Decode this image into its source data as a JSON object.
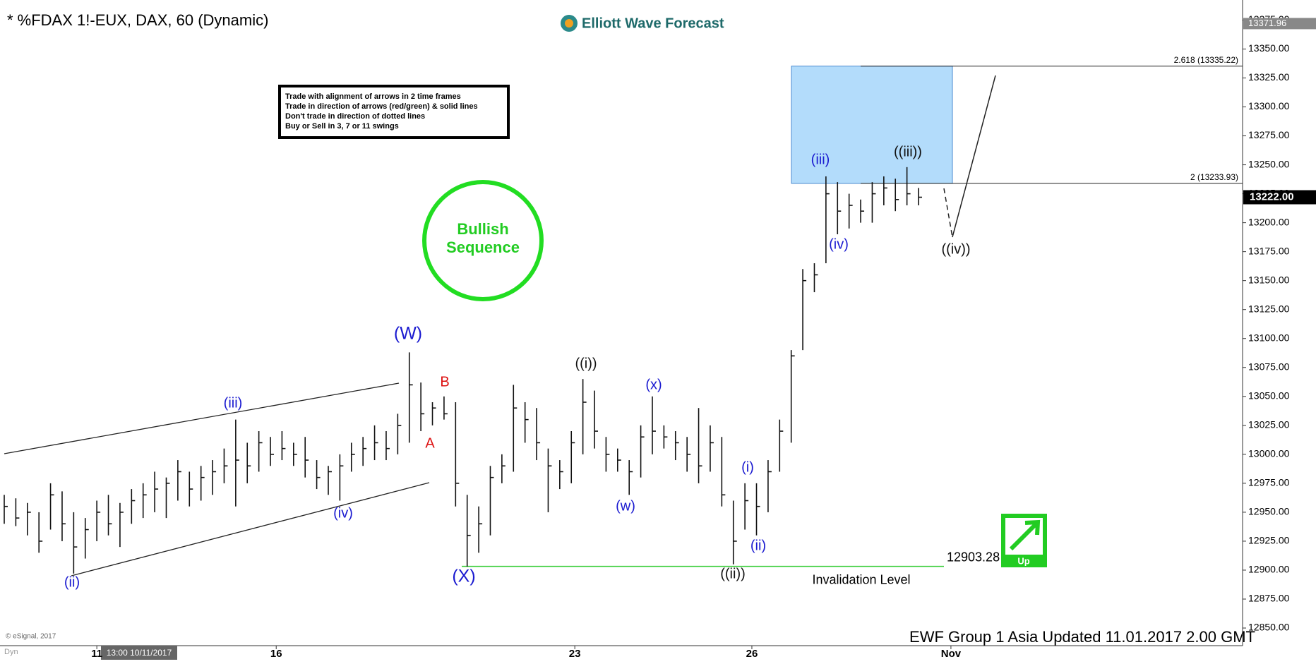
{
  "chart_data": {
    "type": "ohlc",
    "title": "* %FDAX 1!-EUX, DAX, 60 (Dynamic)",
    "logo": "Elliott Wave Forecast",
    "legend_box": [
      "Trade with alignment of arrows in 2 time frames",
      "Trade in direction of arrows (red/green) & solid lines",
      "Don't trade in direction of dotted lines",
      "Buy or Sell in 3, 7 or 11 swings"
    ],
    "badge": [
      "Bullish",
      "Sequence"
    ],
    "signal": "Up",
    "footer": "EWF Group 1 Asia Updated 11.01.2017 2.00 GMT",
    "copyright": "© eSignal, 2017",
    "mode": "Dyn",
    "cursor_label": "13:00 10/11/2017",
    "color": "#111111",
    "high": [
      12965,
      12962,
      12958,
      12950,
      12975,
      12968,
      12950,
      12945,
      12960,
      12965,
      12958,
      12970,
      12975,
      12985,
      12980,
      12995,
      12985,
      12990,
      12995,
      13005,
      13030,
      13010,
      13020,
      13015,
      13020,
      13010,
      13015,
      12995,
      12990,
      13000,
      13010,
      13015,
      13025,
      13020,
      13035,
      13088,
      13062,
      13045,
      13050,
      13045,
      12965,
      12955,
      12990,
      13000,
      13060,
      13045,
      13040,
      13005,
      12995,
      13020,
      13065,
      13055,
      13015,
      13005,
      12995,
      13025,
      13050,
      13025,
      13020,
      13015,
      13040,
      13025,
      13015,
      12960,
      12975,
      12975,
      12995,
      13030,
      13090,
      13160,
      13165,
      13240,
      13235,
      13225,
      13220,
      13235,
      13240,
      13238,
      13248,
      13230
    ],
    "low": [
      12940,
      12938,
      12930,
      12915,
      12935,
      12925,
      12897,
      12910,
      12925,
      12930,
      12920,
      12940,
      12945,
      12950,
      12945,
      12960,
      12955,
      12960,
      12965,
      12975,
      12955,
      12975,
      12985,
      12990,
      12995,
      12990,
      12980,
      12970,
      12965,
      12960,
      12985,
      12990,
      12995,
      12995,
      13000,
      13010,
      13020,
      13025,
      13030,
      12955,
      12903,
      12915,
      12930,
      12975,
      12985,
      13010,
      12995,
      12950,
      12970,
      12975,
      13000,
      13005,
      12985,
      12985,
      12965,
      12980,
      13000,
      13005,
      12995,
      12985,
      12975,
      12985,
      12955,
      12905,
      12935,
      12930,
      12950,
      12985,
      13010,
      13090,
      13140,
      13165,
      13190,
      13195,
      13200,
      13200,
      13215,
      13210,
      13215,
      13215
    ],
    "close": [
      12955,
      12945,
      12950,
      12925,
      12965,
      12940,
      12920,
      12935,
      12950,
      12940,
      12950,
      12960,
      12965,
      12970,
      12975,
      12985,
      12970,
      12980,
      12985,
      12990,
      12995,
      12990,
      13010,
      13000,
      13005,
      13000,
      12995,
      12980,
      12985,
      12990,
      13000,
      13005,
      13010,
      13005,
      13025,
      13060,
      13035,
      13040,
      13035,
      12975,
      12930,
      12940,
      12980,
      12990,
      13040,
      13030,
      13010,
      12990,
      12985,
      13010,
      13045,
      13020,
      13000,
      12995,
      12985,
      13015,
      13020,
      13015,
      13010,
      13000,
      12990,
      13010,
      12965,
      12925,
      12960,
      12955,
      12985,
      13020,
      13085,
      13150,
      13155,
      13225,
      13210,
      13215,
      13210,
      13225,
      13230,
      13220,
      13225,
      13222
    ],
    "xlim": [
      0,
      107
    ],
    "xticks": [
      {
        "value": 8,
        "label": "11"
      },
      {
        "value": 23.5,
        "label": "16"
      },
      {
        "value": 49.3,
        "label": "23"
      },
      {
        "value": 64.6,
        "label": "26"
      },
      {
        "value": 81.8,
        "label": "Nov"
      }
    ],
    "ylim": [
      12836,
      13385
    ],
    "yticks": [
      {
        "value": 12850,
        "label": "12850.00"
      },
      {
        "value": 12875,
        "label": "12875.00"
      },
      {
        "value": 12900,
        "label": "12900.00"
      },
      {
        "value": 12925,
        "label": "12925.00"
      },
      {
        "value": 12950,
        "label": "12950.00"
      },
      {
        "value": 12975,
        "label": "12975.00"
      },
      {
        "value": 13000,
        "label": "13000.00"
      },
      {
        "value": 13025,
        "label": "13025.00"
      },
      {
        "value": 13050,
        "label": "13050.00"
      },
      {
        "value": 13075,
        "label": "13075.00"
      },
      {
        "value": 13100,
        "label": "13100.00"
      },
      {
        "value": 13125,
        "label": "13125.00"
      },
      {
        "value": 13150,
        "label": "13150.00"
      },
      {
        "value": 13175,
        "label": "13175.00"
      },
      {
        "value": 13200,
        "label": "13200.00"
      },
      {
        "value": 13225,
        "label": "13225.00"
      },
      {
        "value": 13250,
        "label": "13250.00"
      },
      {
        "value": 13275,
        "label": "13275.00"
      },
      {
        "value": 13300,
        "label": "13300.00"
      },
      {
        "value": 13325,
        "label": "13325.00"
      },
      {
        "value": 13350,
        "label": "13350.00"
      },
      {
        "value": 13375,
        "label": "13375.00"
      }
    ],
    "last_price": {
      "value": 13222,
      "label": "13222.00"
    },
    "session_high": 13371.96,
    "fib_levels": [
      {
        "value": 13335.22,
        "label": "2.618 (13335.22)"
      },
      {
        "value": 13233.93,
        "label": "2 (13233.93)"
      }
    ],
    "invalidation": {
      "value": 12903.28,
      "text": "Invalidation Level"
    },
    "wave_labels": [
      "(ii)",
      "(iii)",
      "(iv)",
      "(W)",
      "A",
      "B",
      "(X)",
      "((i))",
      "(w)",
      "(x)",
      "((ii))",
      "(i)",
      "(ii)",
      "(iii)",
      "(iv)",
      "((iii))",
      "((iv))"
    ]
  }
}
